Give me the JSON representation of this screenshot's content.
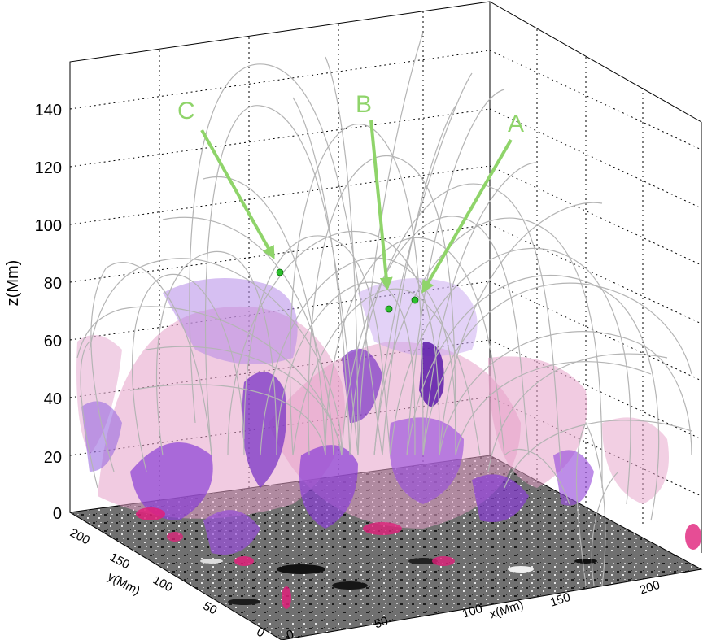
{
  "figure": {
    "z_axis": {
      "label": "z(Mm)",
      "ticks": [
        "0",
        "20",
        "40",
        "60",
        "80",
        "100",
        "120",
        "140"
      ]
    },
    "x_axis": {
      "label": "x(Mm)",
      "ticks": [
        "0",
        "50",
        "100",
        "150",
        "200"
      ]
    },
    "y_axis": {
      "label": "y(Mm)",
      "ticks": [
        "0",
        "50",
        "100",
        "150",
        "200"
      ]
    },
    "annotations": [
      {
        "label": "A"
      },
      {
        "label": "B"
      },
      {
        "label": "C"
      }
    ],
    "colors": {
      "field_lines": "#b4b4b4",
      "annotation": "#8fd46a",
      "marker": "#2ebf2e",
      "surface_purple": "#8a3ed6",
      "surface_pink": "#e6a0c8",
      "surface_magenta": "#e0207a",
      "magnetogram": "#6e6e6e"
    }
  }
}
